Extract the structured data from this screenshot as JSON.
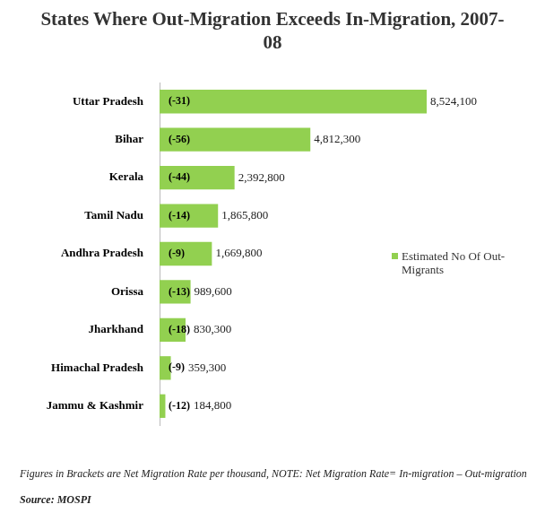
{
  "chart_data": {
    "type": "bar",
    "orientation": "horizontal",
    "title": "States Where Out-Migration Exceeds In-Migration, 2007-08",
    "categories": [
      "Uttar Pradesh",
      "Bihar",
      "Kerala",
      "Tamil Nadu",
      "Andhra Pradesh",
      "Orissa",
      "Jharkhand",
      "Himachal Pradesh",
      "Jammu & Kashmir"
    ],
    "series": [
      {
        "name": "Estimated No Of Out-Migrants",
        "color": "#92d050",
        "values": [
          8524100,
          4812300,
          2392800,
          1865800,
          1669800,
          989600,
          830300,
          359300,
          184800
        ],
        "value_labels": [
          "8,524,100",
          "4,812,300",
          "2,392,800",
          "1,865,800",
          "1,669,800",
          "989,600",
          "830,300",
          "359,300",
          "184,800"
        ],
        "net_migration_rate": [
          -31,
          -56,
          -44,
          -14,
          -9,
          -13,
          -18,
          -9,
          -12
        ],
        "net_migration_rate_labels": [
          "(-31)",
          "(-56)",
          "(-44)",
          "(-14)",
          "(-9)",
          "(-13)",
          "(-18)",
          "(-9)",
          "(-12)"
        ]
      }
    ],
    "xlim": [
      0,
      8524100
    ],
    "grid": false,
    "legend": "right",
    "data_labels": true,
    "tick_labels": "y",
    "notes": "Figures in Brackets are Net Migration Rate per thousand, NOTE: Net Migration Rate= In-migration – Out-migration",
    "source": "Source: MOSPI"
  }
}
